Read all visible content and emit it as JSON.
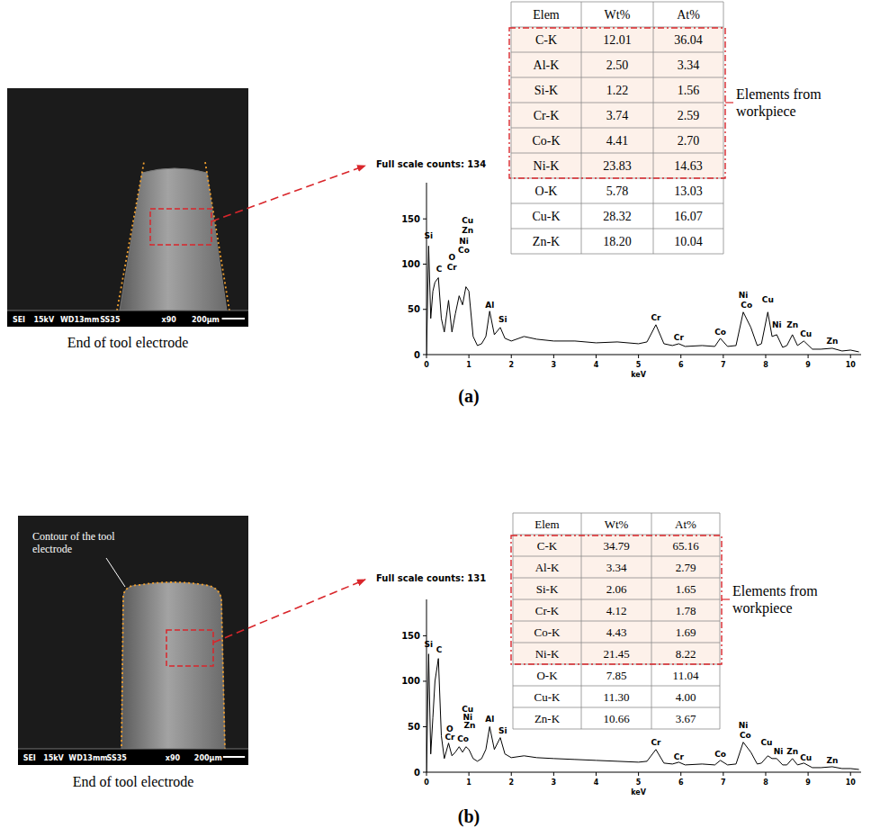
{
  "chart_data": [
    {
      "type": "line",
      "title": "Full scale counts: 134",
      "x_label": "keV",
      "color": "#000000",
      "xlim": [
        0,
        10.25
      ],
      "ylim": [
        0,
        190
      ],
      "xticks": [
        0,
        1,
        2,
        3,
        4,
        5,
        6,
        7,
        8,
        9,
        10
      ],
      "yticks": [
        0,
        50,
        100,
        150
      ],
      "x": [
        0,
        0.05,
        0.1,
        0.15,
        0.2,
        0.28,
        0.35,
        0.42,
        0.52,
        0.6,
        0.68,
        0.77,
        0.85,
        0.93,
        1.0,
        1.1,
        1.2,
        1.3,
        1.4,
        1.49,
        1.6,
        1.74,
        1.85,
        2.0,
        2.3,
        2.6,
        3.0,
        3.5,
        4.0,
        4.5,
        5.0,
        5.2,
        5.41,
        5.6,
        5.8,
        5.95,
        6.1,
        6.5,
        6.8,
        6.93,
        7.1,
        7.3,
        7.47,
        7.65,
        7.8,
        7.9,
        8.05,
        8.15,
        8.26,
        8.4,
        8.5,
        8.63,
        8.75,
        8.9,
        9.1,
        9.3,
        9.57,
        9.8,
        10.0,
        10.2
      ],
      "values": [
        0,
        120,
        40,
        70,
        80,
        85,
        40,
        25,
        60,
        25,
        45,
        65,
        55,
        75,
        70,
        20,
        10,
        12,
        20,
        48,
        22,
        30,
        18,
        15,
        20,
        17,
        15,
        15,
        13,
        14,
        12,
        14,
        33,
        12,
        10,
        12,
        9,
        10,
        9,
        18,
        9,
        10,
        47,
        30,
        10,
        12,
        47,
        20,
        22,
        8,
        10,
        22,
        10,
        15,
        6,
        6,
        7,
        4,
        5,
        3
      ],
      "annotations": [
        {
          "text": "Si",
          "x": 0.05,
          "y": 128
        },
        {
          "text": "C",
          "x": 0.3,
          "y": 92
        },
        {
          "text": "O",
          "x": 0.6,
          "y": 104
        },
        {
          "text": "Cr",
          "x": 0.6,
          "y": 94
        },
        {
          "text": "Co",
          "x": 0.88,
          "y": 112
        },
        {
          "text": "Ni",
          "x": 0.88,
          "y": 122
        },
        {
          "text": "Zn",
          "x": 0.97,
          "y": 134
        },
        {
          "text": "Cu",
          "x": 0.97,
          "y": 145
        },
        {
          "text": "Al",
          "x": 1.49,
          "y": 52
        },
        {
          "text": "Si",
          "x": 1.8,
          "y": 36
        },
        {
          "text": "Cr",
          "x": 5.41,
          "y": 38
        },
        {
          "text": "Cr",
          "x": 5.95,
          "y": 16
        },
        {
          "text": "Co",
          "x": 6.93,
          "y": 22
        },
        {
          "text": "Ni",
          "x": 7.47,
          "y": 63
        },
        {
          "text": "Co",
          "x": 7.55,
          "y": 52
        },
        {
          "text": "Cu",
          "x": 8.05,
          "y": 58
        },
        {
          "text": "Ni",
          "x": 8.26,
          "y": 30
        },
        {
          "text": "Zn",
          "x": 8.63,
          "y": 30
        },
        {
          "text": "Cu",
          "x": 8.95,
          "y": 20
        },
        {
          "text": "Zn",
          "x": 9.57,
          "y": 12
        }
      ]
    },
    {
      "type": "line",
      "title": "Full scale counts: 131",
      "x_label": "keV",
      "color": "#000000",
      "xlim": [
        0,
        10.25
      ],
      "ylim": [
        0,
        190
      ],
      "xticks": [
        0,
        1,
        2,
        3,
        4,
        5,
        6,
        7,
        8,
        9,
        10
      ],
      "yticks": [
        0,
        50,
        100,
        150
      ],
      "x": [
        0,
        0.05,
        0.1,
        0.15,
        0.2,
        0.28,
        0.35,
        0.42,
        0.52,
        0.6,
        0.68,
        0.77,
        0.85,
        0.93,
        1.0,
        1.1,
        1.2,
        1.3,
        1.4,
        1.49,
        1.6,
        1.74,
        1.85,
        2.0,
        2.3,
        2.6,
        3.0,
        3.5,
        4.0,
        4.5,
        5.0,
        5.2,
        5.41,
        5.6,
        5.8,
        5.95,
        6.1,
        6.5,
        6.8,
        6.93,
        7.1,
        7.3,
        7.47,
        7.65,
        7.8,
        7.9,
        8.05,
        8.15,
        8.26,
        8.4,
        8.5,
        8.63,
        8.75,
        8.9,
        9.1,
        9.3,
        9.57,
        9.8,
        10.0,
        10.2
      ],
      "values": [
        0,
        130,
        20,
        60,
        100,
        125,
        40,
        15,
        32,
        18,
        22,
        28,
        22,
        28,
        25,
        15,
        12,
        15,
        25,
        50,
        25,
        38,
        20,
        16,
        18,
        16,
        15,
        14,
        13,
        12,
        11,
        12,
        25,
        10,
        9,
        11,
        8,
        9,
        8,
        13,
        8,
        9,
        33,
        22,
        9,
        10,
        18,
        15,
        15,
        8,
        8,
        15,
        8,
        10,
        5,
        5,
        6,
        4,
        4,
        3
      ],
      "annotations": [
        {
          "text": "Si",
          "x": 0.05,
          "y": 138
        },
        {
          "text": "C",
          "x": 0.3,
          "y": 132
        },
        {
          "text": "O",
          "x": 0.55,
          "y": 45
        },
        {
          "text": "Cr",
          "x": 0.55,
          "y": 36
        },
        {
          "text": "Cu",
          "x": 0.97,
          "y": 66
        },
        {
          "text": "Ni",
          "x": 0.97,
          "y": 57
        },
        {
          "text": "Zn",
          "x": 1.02,
          "y": 48
        },
        {
          "text": "Co",
          "x": 0.86,
          "y": 34
        },
        {
          "text": "Al",
          "x": 1.49,
          "y": 55
        },
        {
          "text": "Si",
          "x": 1.8,
          "y": 43
        },
        {
          "text": "Cr",
          "x": 5.41,
          "y": 30
        },
        {
          "text": "Cr",
          "x": 5.95,
          "y": 14
        },
        {
          "text": "Co",
          "x": 6.93,
          "y": 17
        },
        {
          "text": "Ni",
          "x": 7.47,
          "y": 48
        },
        {
          "text": "Co",
          "x": 7.52,
          "y": 38
        },
        {
          "text": "Cu",
          "x": 8.02,
          "y": 30
        },
        {
          "text": "Ni",
          "x": 8.3,
          "y": 20
        },
        {
          "text": "Zn",
          "x": 8.63,
          "y": 20
        },
        {
          "text": "Cu",
          "x": 8.95,
          "y": 13
        },
        {
          "text": "Zn",
          "x": 9.57,
          "y": 10
        }
      ]
    }
  ],
  "panels": [
    {
      "label": "(a)",
      "sem": {
        "info": [
          "SEI",
          "15kV",
          "WD13mm",
          "SS35",
          "x90",
          "200μm"
        ],
        "caption": "End of tool electrode"
      },
      "table": {
        "header": [
          "Elem",
          "Wt%",
          "At%"
        ],
        "groups": [
          {
            "label": "Elements from workpiece",
            "rows": [
              [
                "C-K",
                "12.01",
                "36.04"
              ],
              [
                "Al-K",
                "2.50",
                "3.34"
              ],
              [
                "Si-K",
                "1.22",
                "1.56"
              ],
              [
                "Cr-K",
                "3.74",
                "2.59"
              ],
              [
                "Co-K",
                "4.41",
                "2.70"
              ],
              [
                "Ni-K",
                "23.83",
                "14.63"
              ]
            ]
          },
          {
            "rows": [
              [
                "O-K",
                "5.78",
                "13.03"
              ],
              [
                "Cu-K",
                "28.32",
                "16.07"
              ],
              [
                "Zn-K",
                "18.20",
                "10.04"
              ]
            ]
          }
        ]
      }
    },
    {
      "label": "(b)",
      "sem": {
        "info": [
          "SEI",
          "15kV",
          "WD13mm",
          "SS35",
          "x90",
          "200μm"
        ],
        "caption": "End of tool electrode",
        "contour_label": "Contour of the tool electrode"
      },
      "table": {
        "header": [
          "Elem",
          "Wt%",
          "At%"
        ],
        "groups": [
          {
            "label": "Elements from workpiece",
            "rows": [
              [
                "C-K",
                "34.79",
                "65.16"
              ],
              [
                "Al-K",
                "3.34",
                "2.79"
              ],
              [
                "Si-K",
                "2.06",
                "1.65"
              ],
              [
                "Cr-K",
                "4.12",
                "1.78"
              ],
              [
                "Co-K",
                "4.43",
                "1.69"
              ],
              [
                "Ni-K",
                "21.45",
                "8.22"
              ]
            ]
          },
          {
            "rows": [
              [
                "O-K",
                "7.85",
                "11.04"
              ],
              [
                "Cu-K",
                "11.30",
                "4.00"
              ],
              [
                "Zn-K",
                "10.66",
                "3.67"
              ]
            ]
          }
        ]
      }
    }
  ]
}
